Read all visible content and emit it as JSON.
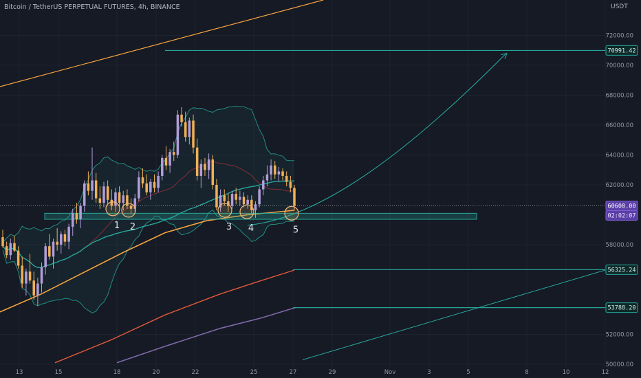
{
  "header": {
    "symbol_line": "Bitcoin / TetherUS PERPETUAL FUTURES, 4h, BINANCE",
    "currency": "USDT"
  },
  "colors": {
    "background": "#161a25",
    "up_candle": "#b39ddb",
    "down_candle": "#f0b056",
    "teal": "#26a69a",
    "orange": "#f7a440",
    "red": "#e05a3a",
    "purple": "#7e6aa8",
    "grid": "#1f2330"
  },
  "chart_data": {
    "type": "candlestick",
    "title": "Bitcoin / TetherUS PERPETUAL FUTURES, 4h, BINANCE",
    "interval": "4h",
    "ylabel": "USDT",
    "ylim": [
      50000,
      74000
    ],
    "y_ticks": [
      "72000.00",
      "70000.00",
      "68000.00",
      "66000.00",
      "64000.00",
      "62000.00",
      "58000.00",
      "52000.00",
      "50000.00"
    ],
    "x_ticks": [
      "13",
      "15",
      "18",
      "20",
      "22",
      "25",
      "27",
      "29",
      "Nov",
      "3",
      "5",
      "8",
      "10",
      "12"
    ],
    "price_labels": [
      {
        "value": "70991.42",
        "price": 70991.42,
        "kind": "target"
      },
      {
        "value": "60600.00",
        "price": 60600,
        "kind": "last"
      },
      {
        "value": "02:02:07",
        "kind": "countdown"
      },
      {
        "value": "56325.24",
        "price": 56325.24,
        "kind": "level"
      },
      {
        "value": "53788.20",
        "price": 53788.2,
        "kind": "level"
      }
    ],
    "support_zone": {
      "low": 59700,
      "high": 60100
    },
    "pivot_points": [
      {
        "label": "1",
        "date": "Oct 18 00:00",
        "price": 60400
      },
      {
        "label": "2",
        "date": "Oct 18 20:00",
        "price": 60300
      },
      {
        "label": "3",
        "date": "Oct 24 00:00",
        "price": 60300
      },
      {
        "label": "4",
        "date": "Oct 25 00:00",
        "price": 60200
      },
      {
        "label": "5",
        "date": "Oct 27 00:00",
        "price": 60100
      }
    ],
    "candles": [
      {
        "o": 58500,
        "h": 59000,
        "l": 57800,
        "c": 57900
      },
      {
        "o": 57900,
        "h": 58200,
        "l": 57100,
        "c": 57300
      },
      {
        "o": 57300,
        "h": 58400,
        "l": 57000,
        "c": 58100
      },
      {
        "o": 58100,
        "h": 58600,
        "l": 57500,
        "c": 57600
      },
      {
        "o": 57600,
        "h": 57900,
        "l": 56400,
        "c": 56600
      },
      {
        "o": 56600,
        "h": 57200,
        "l": 55100,
        "c": 55400
      },
      {
        "o": 55400,
        "h": 56400,
        "l": 54600,
        "c": 56200
      },
      {
        "o": 56200,
        "h": 57400,
        "l": 55400,
        "c": 55600
      },
      {
        "o": 55600,
        "h": 56200,
        "l": 54300,
        "c": 54600
      },
      {
        "o": 54600,
        "h": 55800,
        "l": 53900,
        "c": 55400
      },
      {
        "o": 55400,
        "h": 56800,
        "l": 54800,
        "c": 56500
      },
      {
        "o": 56500,
        "h": 58100,
        "l": 56000,
        "c": 57900
      },
      {
        "o": 57900,
        "h": 58700,
        "l": 57000,
        "c": 57200
      },
      {
        "o": 57200,
        "h": 58400,
        "l": 56400,
        "c": 58200
      },
      {
        "o": 58200,
        "h": 59100,
        "l": 57600,
        "c": 58000
      },
      {
        "o": 58000,
        "h": 58900,
        "l": 57400,
        "c": 58700
      },
      {
        "o": 58700,
        "h": 59000,
        "l": 57900,
        "c": 58200
      },
      {
        "o": 58200,
        "h": 59400,
        "l": 57700,
        "c": 59200
      },
      {
        "o": 59200,
        "h": 60400,
        "l": 58600,
        "c": 60100
      },
      {
        "o": 60100,
        "h": 60800,
        "l": 59400,
        "c": 59700
      },
      {
        "o": 59700,
        "h": 60800,
        "l": 59100,
        "c": 60600
      },
      {
        "o": 60600,
        "h": 62300,
        "l": 60200,
        "c": 62100
      },
      {
        "o": 62100,
        "h": 62900,
        "l": 61300,
        "c": 61600
      },
      {
        "o": 61600,
        "h": 64500,
        "l": 61000,
        "c": 62300
      },
      {
        "o": 62300,
        "h": 62800,
        "l": 60800,
        "c": 61100
      },
      {
        "o": 61100,
        "h": 61900,
        "l": 60400,
        "c": 60800
      },
      {
        "o": 60800,
        "h": 62200,
        "l": 60500,
        "c": 61900
      },
      {
        "o": 61900,
        "h": 62300,
        "l": 60700,
        "c": 61000
      },
      {
        "o": 61000,
        "h": 61700,
        "l": 60300,
        "c": 60600
      },
      {
        "o": 60600,
        "h": 61800,
        "l": 60200,
        "c": 61500
      },
      {
        "o": 61500,
        "h": 61900,
        "l": 60500,
        "c": 60800
      },
      {
        "o": 60800,
        "h": 61600,
        "l": 60300,
        "c": 61300
      },
      {
        "o": 61300,
        "h": 61700,
        "l": 60400,
        "c": 60600
      },
      {
        "o": 60600,
        "h": 61100,
        "l": 60100,
        "c": 60400
      },
      {
        "o": 60400,
        "h": 61400,
        "l": 60200,
        "c": 61100
      },
      {
        "o": 61100,
        "h": 62900,
        "l": 60900,
        "c": 62500
      },
      {
        "o": 62500,
        "h": 63100,
        "l": 61800,
        "c": 62100
      },
      {
        "o": 62100,
        "h": 62700,
        "l": 61300,
        "c": 61500
      },
      {
        "o": 61500,
        "h": 62400,
        "l": 61000,
        "c": 62200
      },
      {
        "o": 62200,
        "h": 62700,
        "l": 61500,
        "c": 61800
      },
      {
        "o": 61800,
        "h": 62900,
        "l": 61500,
        "c": 62600
      },
      {
        "o": 62600,
        "h": 64000,
        "l": 62300,
        "c": 63800
      },
      {
        "o": 63800,
        "h": 64600,
        "l": 63000,
        "c": 63300
      },
      {
        "o": 63300,
        "h": 64400,
        "l": 62800,
        "c": 64200
      },
      {
        "o": 64200,
        "h": 64900,
        "l": 63600,
        "c": 64000
      },
      {
        "o": 64000,
        "h": 67000,
        "l": 63800,
        "c": 66700
      },
      {
        "o": 66700,
        "h": 67200,
        "l": 65900,
        "c": 66200
      },
      {
        "o": 66200,
        "h": 66900,
        "l": 64900,
        "c": 65200
      },
      {
        "o": 65200,
        "h": 66500,
        "l": 64700,
        "c": 66300
      },
      {
        "o": 66300,
        "h": 66700,
        "l": 64100,
        "c": 64500
      },
      {
        "o": 64500,
        "h": 65100,
        "l": 62300,
        "c": 62600
      },
      {
        "o": 62600,
        "h": 63700,
        "l": 61800,
        "c": 63400
      },
      {
        "o": 63400,
        "h": 63800,
        "l": 62600,
        "c": 63000
      },
      {
        "o": 63000,
        "h": 64100,
        "l": 62400,
        "c": 63700
      },
      {
        "o": 63700,
        "h": 64000,
        "l": 61700,
        "c": 62000
      },
      {
        "o": 62000,
        "h": 62400,
        "l": 60300,
        "c": 60500
      },
      {
        "o": 60500,
        "h": 61700,
        "l": 60200,
        "c": 61300
      },
      {
        "o": 61300,
        "h": 61700,
        "l": 60600,
        "c": 60900
      },
      {
        "o": 60900,
        "h": 61400,
        "l": 60200,
        "c": 60600
      },
      {
        "o": 60600,
        "h": 61600,
        "l": 60400,
        "c": 61400
      },
      {
        "o": 61400,
        "h": 61800,
        "l": 60700,
        "c": 61000
      },
      {
        "o": 61000,
        "h": 61600,
        "l": 60600,
        "c": 61200
      },
      {
        "o": 61200,
        "h": 61500,
        "l": 60500,
        "c": 60700
      },
      {
        "o": 60700,
        "h": 61300,
        "l": 60400,
        "c": 61000
      },
      {
        "o": 61000,
        "h": 61300,
        "l": 60100,
        "c": 60300
      },
      {
        "o": 60300,
        "h": 60900,
        "l": 59800,
        "c": 60700
      },
      {
        "o": 60700,
        "h": 61900,
        "l": 60500,
        "c": 61700
      },
      {
        "o": 61700,
        "h": 62600,
        "l": 61300,
        "c": 62300
      },
      {
        "o": 62300,
        "h": 63300,
        "l": 61900,
        "c": 62700
      },
      {
        "o": 62700,
        "h": 63700,
        "l": 62300,
        "c": 63300
      },
      {
        "o": 63300,
        "h": 63600,
        "l": 62400,
        "c": 62700
      },
      {
        "o": 62700,
        "h": 63200,
        "l": 62200,
        "c": 62900
      },
      {
        "o": 62900,
        "h": 63100,
        "l": 62300,
        "c": 62600
      },
      {
        "o": 62600,
        "h": 62900,
        "l": 61900,
        "c": 62200
      },
      {
        "o": 62200,
        "h": 62600,
        "l": 61500,
        "c": 61800
      },
      {
        "o": 61800,
        "h": 62000,
        "l": 60300,
        "c": 60600
      }
    ]
  }
}
